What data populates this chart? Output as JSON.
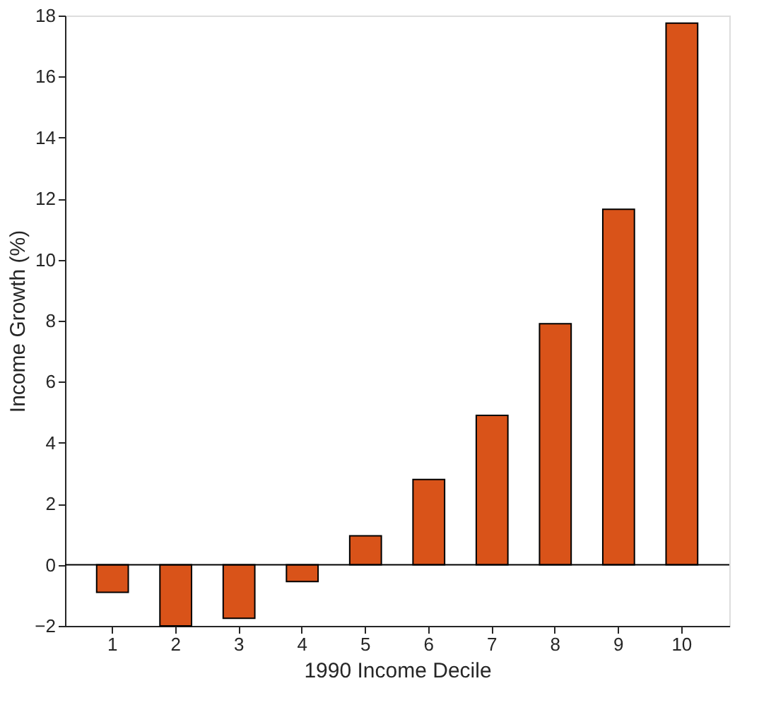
{
  "chart_data": {
    "type": "bar",
    "xlabel": "1990 Income Decile",
    "ylabel": "Income Growth (%)",
    "categories": [
      "1",
      "2",
      "3",
      "4",
      "5",
      "6",
      "7",
      "8",
      "9",
      "10"
    ],
    "values": [
      -0.9,
      -2.0,
      -1.75,
      -0.55,
      0.95,
      2.8,
      4.9,
      7.9,
      11.65,
      17.75
    ],
    "color": "#d95319",
    "ylim": [
      -2,
      18
    ],
    "yticks": [
      -2,
      0,
      2,
      4,
      6,
      8,
      10,
      12,
      14,
      16,
      18
    ],
    "ref_lines": [
      {
        "axis": "y",
        "value": 0,
        "color": "#000000"
      }
    ],
    "grid": false
  }
}
